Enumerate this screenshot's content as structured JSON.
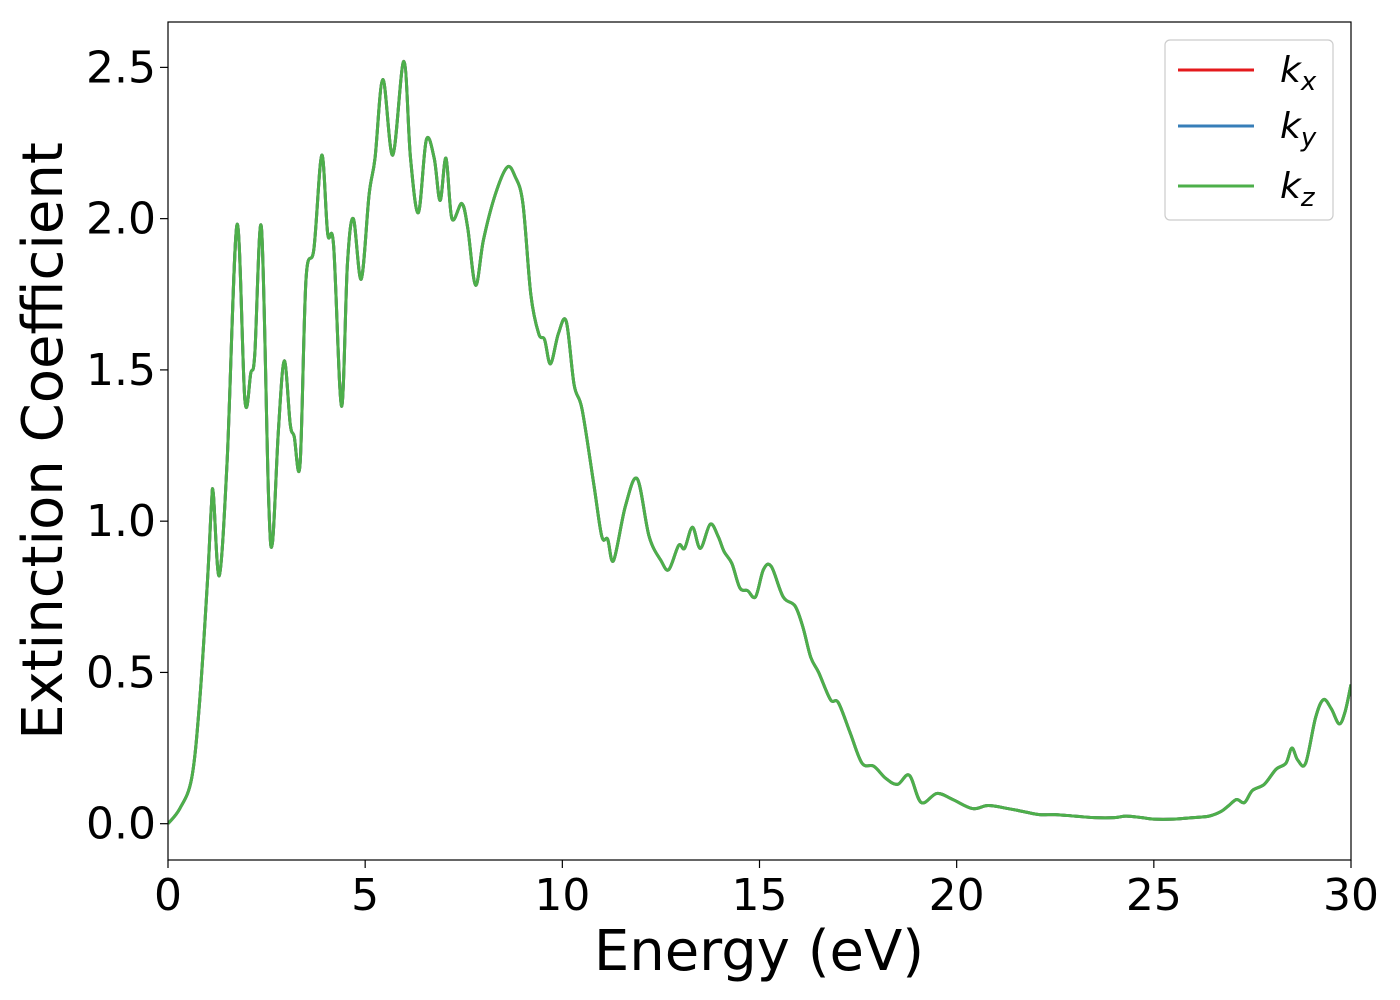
{
  "chart_data": {
    "type": "line",
    "title": "",
    "xlabel": "Energy (eV)",
    "ylabel": "Extinction Coefficient",
    "xlim": [
      0,
      30
    ],
    "ylim": [
      -0.12,
      2.65
    ],
    "xticks": [
      0,
      5,
      10,
      15,
      20,
      25,
      30
    ],
    "xtick_labels": [
      "0",
      "5",
      "10",
      "15",
      "20",
      "25",
      "30"
    ],
    "yticks": [
      0.0,
      0.5,
      1.0,
      1.5,
      2.0,
      2.5
    ],
    "ytick_labels": [
      "0.0",
      "0.5",
      "1.0",
      "1.5",
      "2.0",
      "2.5"
    ],
    "grid": false,
    "legend_position": "top-right",
    "series": [
      {
        "name": "k_x",
        "legend_main": "k",
        "legend_sub": "x",
        "color": "#e41a1c"
      },
      {
        "name": "k_y",
        "legend_main": "k",
        "legend_sub": "y",
        "color": "#377eb8"
      },
      {
        "name": "k_z",
        "legend_main": "k",
        "legend_sub": "z",
        "color": "#4daf4a"
      }
    ],
    "x": [
      0,
      0.3,
      0.6,
      0.8,
      1.0,
      1.1,
      1.15,
      1.3,
      1.5,
      1.75,
      1.95,
      2.1,
      2.2,
      2.37,
      2.55,
      2.65,
      2.8,
      2.95,
      3.1,
      3.2,
      3.35,
      3.5,
      3.7,
      3.9,
      4.05,
      4.2,
      4.4,
      4.55,
      4.7,
      4.9,
      5.1,
      5.25,
      5.45,
      5.7,
      5.98,
      6.15,
      6.35,
      6.55,
      6.75,
      6.9,
      7.05,
      7.2,
      7.45,
      7.6,
      7.8,
      8.0,
      8.3,
      8.6,
      8.8,
      9.0,
      9.2,
      9.4,
      9.55,
      9.7,
      9.9,
      10.1,
      10.3,
      10.5,
      10.8,
      11.0,
      11.15,
      11.3,
      11.6,
      11.9,
      12.2,
      12.5,
      12.7,
      12.95,
      13.1,
      13.3,
      13.5,
      13.75,
      13.95,
      14.1,
      14.3,
      14.5,
      14.7,
      14.9,
      15.1,
      15.3,
      15.6,
      15.9,
      16.1,
      16.3,
      16.5,
      16.8,
      17.0,
      17.3,
      17.6,
      17.9,
      18.2,
      18.5,
      18.8,
      19.1,
      19.5,
      19.9,
      20.4,
      20.8,
      21.3,
      21.7,
      22.1,
      22.5,
      23.0,
      23.5,
      24.0,
      24.3,
      24.7,
      25.0,
      25.5,
      26.0,
      26.4,
      26.7,
      26.9,
      27.1,
      27.3,
      27.5,
      27.8,
      28.1,
      28.35,
      28.5,
      28.65,
      28.85,
      29.1,
      29.3,
      29.5,
      29.7,
      29.85,
      30.0
    ],
    "y": [
      0.0,
      0.05,
      0.15,
      0.4,
      0.8,
      1.05,
      1.09,
      0.82,
      1.2,
      1.98,
      1.4,
      1.49,
      1.55,
      1.97,
      1.08,
      0.93,
      1.3,
      1.53,
      1.32,
      1.28,
      1.19,
      1.8,
      1.9,
      2.21,
      1.95,
      1.91,
      1.38,
      1.85,
      2.0,
      1.8,
      2.08,
      2.2,
      2.46,
      2.21,
      2.52,
      2.2,
      2.02,
      2.26,
      2.2,
      2.06,
      2.2,
      2.0,
      2.05,
      1.97,
      1.78,
      1.93,
      2.08,
      2.17,
      2.14,
      2.05,
      1.75,
      1.62,
      1.6,
      1.52,
      1.62,
      1.66,
      1.45,
      1.37,
      1.12,
      0.95,
      0.94,
      0.87,
      1.05,
      1.14,
      0.95,
      0.87,
      0.84,
      0.92,
      0.91,
      0.98,
      0.91,
      0.99,
      0.95,
      0.9,
      0.86,
      0.78,
      0.77,
      0.75,
      0.84,
      0.85,
      0.75,
      0.72,
      0.65,
      0.55,
      0.5,
      0.41,
      0.4,
      0.3,
      0.2,
      0.19,
      0.15,
      0.13,
      0.16,
      0.07,
      0.1,
      0.08,
      0.05,
      0.06,
      0.05,
      0.04,
      0.03,
      0.03,
      0.025,
      0.02,
      0.02,
      0.025,
      0.02,
      0.015,
      0.015,
      0.02,
      0.025,
      0.04,
      0.06,
      0.08,
      0.07,
      0.11,
      0.13,
      0.18,
      0.2,
      0.25,
      0.21,
      0.2,
      0.35,
      0.41,
      0.38,
      0.33,
      0.37,
      0.46
    ]
  }
}
